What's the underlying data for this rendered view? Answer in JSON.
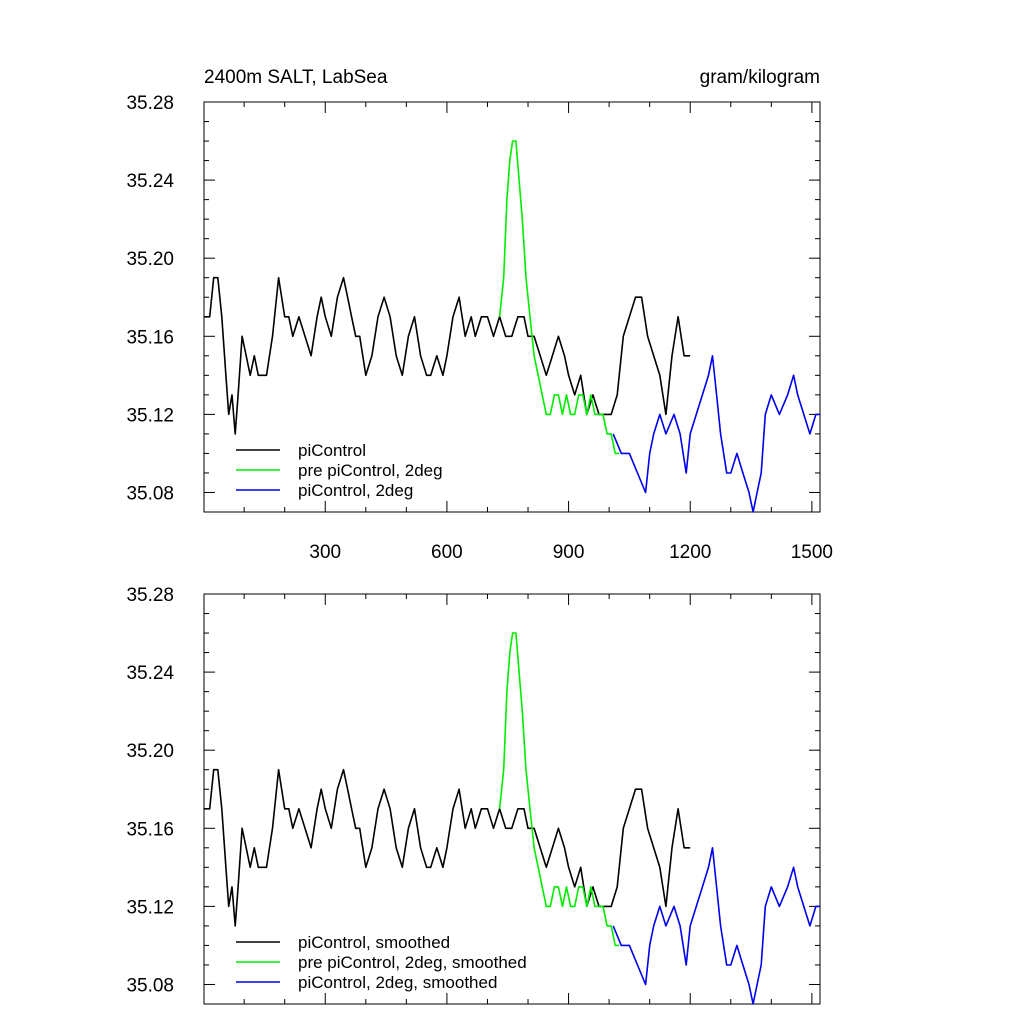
{
  "header": {
    "title": "2400m SALT, LabSea",
    "units": "gram/kilogram"
  },
  "colors": {
    "piControl": "#000000",
    "pre_piControl_2deg": "#00ee00",
    "piControl_2deg": "#0000ee"
  },
  "chart_data": [
    {
      "type": "line",
      "title": "2400m SALT, LabSea",
      "units": "gram/kilogram",
      "xlim": [
        1,
        1520
      ],
      "ylim": [
        35.07,
        35.28
      ],
      "xticks": [
        300,
        600,
        900,
        1200,
        1500
      ],
      "yticks": [
        35.08,
        35.12,
        35.16,
        35.2,
        35.24,
        35.28
      ],
      "ytick_labels": [
        "35.08",
        "35.12",
        "35.16",
        "35.20",
        "35.24",
        "35.28"
      ],
      "legend_position": "bottom-left",
      "series": [
        {
          "name": "piControl",
          "color": "#000000",
          "x": [
            1,
            15,
            25,
            35,
            45,
            55,
            62,
            70,
            78,
            85,
            95,
            105,
            115,
            125,
            135,
            145,
            155,
            170,
            185,
            200,
            210,
            220,
            235,
            250,
            265,
            280,
            290,
            300,
            315,
            330,
            345,
            355,
            365,
            375,
            385,
            400,
            415,
            430,
            445,
            460,
            475,
            490,
            505,
            520,
            535,
            550,
            560,
            575,
            590,
            600,
            615,
            630,
            645,
            660,
            670,
            685,
            700,
            715,
            730,
            745,
            760,
            775,
            790,
            800,
            815,
            830,
            845,
            860,
            875,
            890,
            900,
            915,
            930,
            945,
            960,
            975,
            990,
            1005,
            1020,
            1035,
            1050,
            1065,
            1080,
            1095,
            1110,
            1125,
            1140,
            1155,
            1170,
            1185,
            1200
          ],
          "y": [
            35.17,
            35.17,
            35.19,
            35.19,
            35.17,
            35.14,
            35.12,
            35.13,
            35.11,
            35.13,
            35.16,
            35.15,
            35.14,
            35.15,
            35.14,
            35.14,
            35.14,
            35.16,
            35.19,
            35.17,
            35.17,
            35.16,
            35.17,
            35.16,
            35.15,
            35.17,
            35.18,
            35.17,
            35.16,
            35.18,
            35.19,
            35.18,
            35.17,
            35.16,
            35.16,
            35.14,
            35.15,
            35.17,
            35.18,
            35.17,
            35.15,
            35.14,
            35.16,
            35.17,
            35.15,
            35.14,
            35.14,
            35.15,
            35.14,
            35.15,
            35.17,
            35.18,
            35.16,
            35.17,
            35.16,
            35.17,
            35.17,
            35.16,
            35.17,
            35.16,
            35.16,
            35.17,
            35.17,
            35.16,
            35.16,
            35.15,
            35.14,
            35.15,
            35.16,
            35.15,
            35.14,
            35.13,
            35.14,
            35.12,
            35.13,
            35.12,
            35.12,
            35.12,
            35.13,
            35.16,
            35.17,
            35.18,
            35.18,
            35.16,
            35.15,
            35.14,
            35.12,
            35.15,
            35.17,
            35.15,
            35.15
          ]
        },
        {
          "name": "pre piControl, 2deg",
          "color": "#00ee00",
          "x": [
            730,
            740,
            748,
            755,
            762,
            770,
            778,
            786,
            795,
            805,
            815,
            825,
            835,
            845,
            855,
            865,
            875,
            885,
            895,
            905,
            915,
            925,
            935,
            945,
            955,
            965,
            975,
            985,
            995,
            1005,
            1015,
            1025
          ],
          "y": [
            35.17,
            35.19,
            35.23,
            35.25,
            35.26,
            35.26,
            35.24,
            35.22,
            35.19,
            35.17,
            35.15,
            35.14,
            35.13,
            35.12,
            35.12,
            35.13,
            35.13,
            35.12,
            35.13,
            35.12,
            35.12,
            35.13,
            35.13,
            35.12,
            35.13,
            35.12,
            35.12,
            35.12,
            35.11,
            35.11,
            35.1,
            35.1
          ]
        },
        {
          "name": "piControl, 2deg",
          "color": "#0000ee",
          "x": [
            1010,
            1030,
            1050,
            1070,
            1090,
            1100,
            1110,
            1125,
            1140,
            1160,
            1175,
            1190,
            1200,
            1215,
            1230,
            1245,
            1255,
            1265,
            1275,
            1290,
            1300,
            1315,
            1330,
            1345,
            1355,
            1365,
            1375,
            1385,
            1400,
            1420,
            1440,
            1455,
            1465,
            1480,
            1495,
            1510,
            1520
          ],
          "y": [
            35.11,
            35.1,
            35.1,
            35.09,
            35.08,
            35.1,
            35.11,
            35.12,
            35.11,
            35.12,
            35.11,
            35.09,
            35.11,
            35.12,
            35.13,
            35.14,
            35.15,
            35.13,
            35.11,
            35.09,
            35.09,
            35.1,
            35.09,
            35.08,
            35.07,
            35.08,
            35.09,
            35.12,
            35.13,
            35.12,
            35.13,
            35.14,
            35.13,
            35.12,
            35.11,
            35.12,
            35.12
          ]
        }
      ]
    },
    {
      "type": "line",
      "xlim": [
        1,
        1520
      ],
      "ylim": [
        35.07,
        35.28
      ],
      "xticks": [
        300,
        600,
        900,
        1200,
        1500
      ],
      "yticks": [
        35.08,
        35.12,
        35.16,
        35.2,
        35.24,
        35.28
      ],
      "ytick_labels": [
        "35.08",
        "35.12",
        "35.16",
        "35.20",
        "35.24",
        "35.28"
      ],
      "legend_position": "bottom-left",
      "series": [
        {
          "name": "piControl, smoothed",
          "color": "#000000",
          "x": [
            1,
            15,
            25,
            35,
            45,
            55,
            62,
            70,
            78,
            85,
            95,
            105,
            115,
            125,
            135,
            145,
            155,
            170,
            185,
            200,
            210,
            220,
            235,
            250,
            265,
            280,
            290,
            300,
            315,
            330,
            345,
            355,
            365,
            375,
            385,
            400,
            415,
            430,
            445,
            460,
            475,
            490,
            505,
            520,
            535,
            550,
            560,
            575,
            590,
            600,
            615,
            630,
            645,
            660,
            670,
            685,
            700,
            715,
            730,
            745,
            760,
            775,
            790,
            800,
            815,
            830,
            845,
            860,
            875,
            890,
            900,
            915,
            930,
            945,
            960,
            975,
            990,
            1005,
            1020,
            1035,
            1050,
            1065,
            1080,
            1095,
            1110,
            1125,
            1140,
            1155,
            1170,
            1185,
            1200
          ],
          "y": [
            35.17,
            35.17,
            35.19,
            35.19,
            35.17,
            35.14,
            35.12,
            35.13,
            35.11,
            35.13,
            35.16,
            35.15,
            35.14,
            35.15,
            35.14,
            35.14,
            35.14,
            35.16,
            35.19,
            35.17,
            35.17,
            35.16,
            35.17,
            35.16,
            35.15,
            35.17,
            35.18,
            35.17,
            35.16,
            35.18,
            35.19,
            35.18,
            35.17,
            35.16,
            35.16,
            35.14,
            35.15,
            35.17,
            35.18,
            35.17,
            35.15,
            35.14,
            35.16,
            35.17,
            35.15,
            35.14,
            35.14,
            35.15,
            35.14,
            35.15,
            35.17,
            35.18,
            35.16,
            35.17,
            35.16,
            35.17,
            35.17,
            35.16,
            35.17,
            35.16,
            35.16,
            35.17,
            35.17,
            35.16,
            35.16,
            35.15,
            35.14,
            35.15,
            35.16,
            35.15,
            35.14,
            35.13,
            35.14,
            35.12,
            35.13,
            35.12,
            35.12,
            35.12,
            35.13,
            35.16,
            35.17,
            35.18,
            35.18,
            35.16,
            35.15,
            35.14,
            35.12,
            35.15,
            35.17,
            35.15,
            35.15
          ]
        },
        {
          "name": "pre piControl, 2deg, smoothed",
          "color": "#00ee00",
          "x": [
            730,
            740,
            748,
            755,
            762,
            770,
            778,
            786,
            795,
            805,
            815,
            825,
            835,
            845,
            855,
            865,
            875,
            885,
            895,
            905,
            915,
            925,
            935,
            945,
            955,
            965,
            975,
            985,
            995,
            1005,
            1015,
            1025
          ],
          "y": [
            35.17,
            35.19,
            35.23,
            35.25,
            35.26,
            35.26,
            35.24,
            35.22,
            35.19,
            35.17,
            35.15,
            35.14,
            35.13,
            35.12,
            35.12,
            35.13,
            35.13,
            35.12,
            35.13,
            35.12,
            35.12,
            35.13,
            35.13,
            35.12,
            35.13,
            35.12,
            35.12,
            35.12,
            35.11,
            35.11,
            35.1,
            35.1
          ]
        },
        {
          "name": "piControl, 2deg, smoothed",
          "color": "#0000ee",
          "x": [
            1010,
            1030,
            1050,
            1070,
            1090,
            1100,
            1110,
            1125,
            1140,
            1160,
            1175,
            1190,
            1200,
            1215,
            1230,
            1245,
            1255,
            1265,
            1275,
            1290,
            1300,
            1315,
            1330,
            1345,
            1355,
            1365,
            1375,
            1385,
            1400,
            1420,
            1440,
            1455,
            1465,
            1480,
            1495,
            1510,
            1520
          ],
          "y": [
            35.11,
            35.1,
            35.1,
            35.09,
            35.08,
            35.1,
            35.11,
            35.12,
            35.11,
            35.12,
            35.11,
            35.09,
            35.11,
            35.12,
            35.13,
            35.14,
            35.15,
            35.13,
            35.11,
            35.09,
            35.09,
            35.1,
            35.09,
            35.08,
            35.07,
            35.08,
            35.09,
            35.12,
            35.13,
            35.12,
            35.13,
            35.14,
            35.13,
            35.12,
            35.11,
            35.12,
            35.12
          ]
        }
      ]
    }
  ]
}
